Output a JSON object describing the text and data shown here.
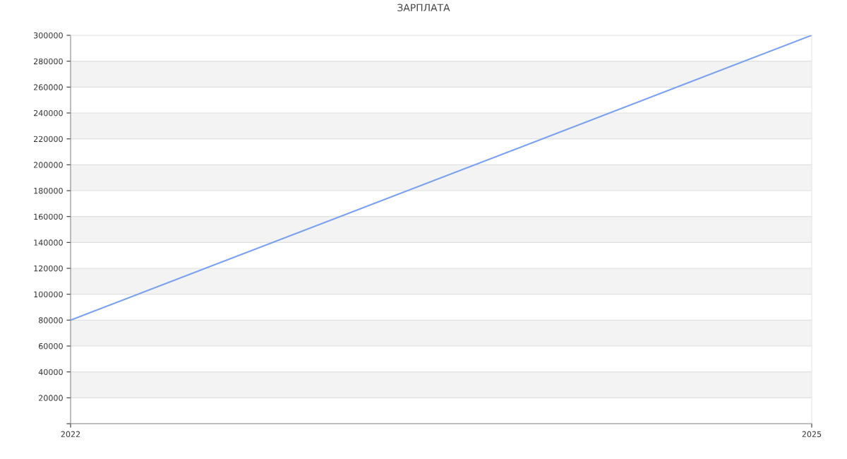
{
  "chart_data": {
    "type": "line",
    "title": "ЗАРПЛАТА",
    "x": [
      2022,
      2025
    ],
    "series": [
      {
        "color": "#7aa0f0",
        "values": [
          80000,
          300000
        ]
      }
    ],
    "xlim": [
      2022,
      2025
    ],
    "xticks": [
      2022,
      2025
    ],
    "ylim": [
      0,
      300000
    ],
    "yticks": [
      {
        "value": 0,
        "label": null
      },
      20000,
      40000,
      60000,
      80000,
      100000,
      120000,
      140000,
      160000,
      180000,
      200000,
      220000,
      240000,
      260000,
      280000,
      300000
    ],
    "grid": "y",
    "marker": "none",
    "line_style": "solid"
  }
}
